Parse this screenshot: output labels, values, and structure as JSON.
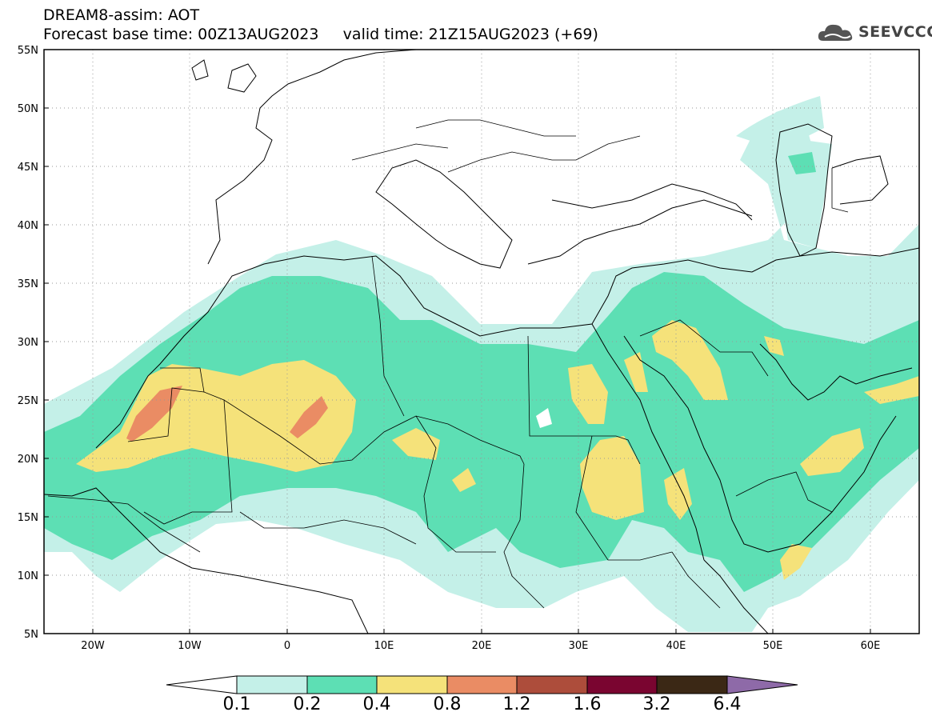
{
  "title": {
    "line1": "DREAM8-assim: AOT",
    "line2": "Forecast base time: 00Z13AUG2023     valid time: 21Z15AUG2023 (+69)"
  },
  "logo": {
    "text": "SEEVCCC",
    "icon": "cloud-icon"
  },
  "axes": {
    "lon_range": [
      -25,
      65
    ],
    "lat_range": [
      5,
      55
    ],
    "lat_labels": [
      {
        "value": 55,
        "text": "55N"
      },
      {
        "value": 50,
        "text": "50N"
      },
      {
        "value": 45,
        "text": "45N"
      },
      {
        "value": 40,
        "text": "40N"
      },
      {
        "value": 35,
        "text": "35N"
      },
      {
        "value": 30,
        "text": "30N"
      },
      {
        "value": 25,
        "text": "25N"
      },
      {
        "value": 20,
        "text": "20N"
      },
      {
        "value": 15,
        "text": "15N"
      },
      {
        "value": 10,
        "text": "10N"
      },
      {
        "value": 5,
        "text": "5N"
      }
    ],
    "lon_labels": [
      {
        "value": -20,
        "text": "20W"
      },
      {
        "value": -10,
        "text": "10W"
      },
      {
        "value": 0,
        "text": "0"
      },
      {
        "value": 10,
        "text": "10E"
      },
      {
        "value": 20,
        "text": "20E"
      },
      {
        "value": 30,
        "text": "30E"
      },
      {
        "value": 40,
        "text": "40E"
      },
      {
        "value": 50,
        "text": "50E"
      },
      {
        "value": 60,
        "text": "60E"
      }
    ],
    "grid": "dotted"
  },
  "colorbar": {
    "levels": [
      "0.1",
      "0.2",
      "0.4",
      "0.8",
      "1.2",
      "1.6",
      "3.2",
      "6.4"
    ],
    "colors": [
      "#ffffff",
      "#c4f0e8",
      "#5ddfb4",
      "#f5e27a",
      "#ea8c64",
      "#ad4d3b",
      "#7a0530",
      "#3b2815",
      "#8e6aa8"
    ]
  }
}
